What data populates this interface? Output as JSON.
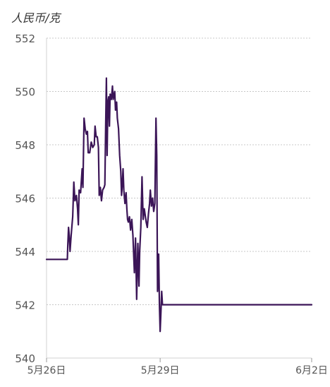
{
  "chart_data": {
    "type": "line",
    "ylabel": "人民币/克",
    "xlabel": "",
    "ylim": [
      540,
      552
    ],
    "yticks": [
      540,
      542,
      544,
      546,
      548,
      550,
      552
    ],
    "xlim": [
      0,
      7
    ],
    "xticks": [
      {
        "x": 0,
        "label": "5月26日"
      },
      {
        "x": 3,
        "label": "5月29日"
      },
      {
        "x": 7,
        "label": "6月2日"
      }
    ],
    "grid": true,
    "line_color": "#3b1557",
    "series": [
      {
        "values": [
          [
            0.0,
            543.7
          ],
          [
            0.55,
            543.7
          ],
          [
            0.56,
            544.2
          ],
          [
            0.58,
            544.9
          ],
          [
            0.6,
            544.6
          ],
          [
            0.62,
            544.0
          ],
          [
            0.65,
            544.6
          ],
          [
            0.69,
            545.3
          ],
          [
            0.72,
            546.6
          ],
          [
            0.75,
            545.9
          ],
          [
            0.79,
            546.1
          ],
          [
            0.82,
            545.6
          ],
          [
            0.84,
            545.0
          ],
          [
            0.86,
            546.3
          ],
          [
            0.9,
            546.2
          ],
          [
            0.94,
            547.1
          ],
          [
            0.96,
            546.4
          ],
          [
            0.99,
            549.0
          ],
          [
            1.02,
            548.6
          ],
          [
            1.05,
            548.4
          ],
          [
            1.08,
            548.5
          ],
          [
            1.1,
            547.7
          ],
          [
            1.14,
            547.7
          ],
          [
            1.18,
            548.1
          ],
          [
            1.22,
            547.9
          ],
          [
            1.26,
            548.0
          ],
          [
            1.28,
            548.7
          ],
          [
            1.31,
            548.3
          ],
          [
            1.34,
            548.3
          ],
          [
            1.37,
            547.9
          ],
          [
            1.39,
            546.1
          ],
          [
            1.42,
            546.4
          ],
          [
            1.45,
            545.9
          ],
          [
            1.48,
            546.3
          ],
          [
            1.52,
            546.4
          ],
          [
            1.54,
            546.5
          ],
          [
            1.56,
            548.6
          ],
          [
            1.58,
            550.5
          ],
          [
            1.6,
            547.6
          ],
          [
            1.62,
            549.6
          ],
          [
            1.64,
            549.8
          ],
          [
            1.66,
            548.7
          ],
          [
            1.68,
            549.9
          ],
          [
            1.71,
            549.7
          ],
          [
            1.74,
            550.2
          ],
          [
            1.76,
            549.7
          ],
          [
            1.8,
            550.0
          ],
          [
            1.82,
            549.3
          ],
          [
            1.85,
            549.6
          ],
          [
            1.87,
            549.0
          ],
          [
            1.9,
            548.6
          ],
          [
            1.93,
            547.6
          ],
          [
            1.96,
            547.0
          ],
          [
            1.98,
            546.1
          ],
          [
            2.0,
            546.5
          ],
          [
            2.02,
            547.1
          ],
          [
            2.04,
            546.3
          ],
          [
            2.07,
            545.8
          ],
          [
            2.1,
            546.2
          ],
          [
            2.12,
            545.6
          ],
          [
            2.14,
            545.2
          ],
          [
            2.16,
            545.1
          ],
          [
            2.19,
            545.3
          ],
          [
            2.22,
            544.8
          ],
          [
            2.25,
            545.2
          ],
          [
            2.28,
            544.6
          ],
          [
            2.32,
            543.2
          ],
          [
            2.35,
            544.5
          ],
          [
            2.38,
            542.2
          ],
          [
            2.41,
            544.3
          ],
          [
            2.44,
            542.7
          ],
          [
            2.46,
            544.0
          ],
          [
            2.49,
            544.9
          ],
          [
            2.52,
            546.8
          ],
          [
            2.55,
            545.2
          ],
          [
            2.58,
            545.6
          ],
          [
            2.6,
            545.4
          ],
          [
            2.63,
            545.1
          ],
          [
            2.66,
            544.9
          ],
          [
            2.69,
            545.4
          ],
          [
            2.72,
            545.8
          ],
          [
            2.74,
            546.3
          ],
          [
            2.77,
            545.7
          ],
          [
            2.8,
            546.0
          ],
          [
            2.83,
            545.5
          ],
          [
            2.86,
            545.8
          ],
          [
            2.89,
            549.0
          ],
          [
            2.91,
            547.6
          ],
          [
            2.93,
            542.5
          ],
          [
            2.96,
            543.9
          ],
          [
            2.98,
            542.0
          ],
          [
            3.0,
            541.0
          ],
          [
            3.02,
            541.7
          ],
          [
            3.04,
            542.5
          ],
          [
            3.06,
            542.0
          ],
          [
            3.1,
            542.0
          ],
          [
            3.5,
            542.0
          ],
          [
            4.0,
            542.0
          ],
          [
            5.0,
            542.0
          ],
          [
            6.0,
            542.0
          ],
          [
            7.0,
            542.0
          ]
        ]
      }
    ]
  }
}
